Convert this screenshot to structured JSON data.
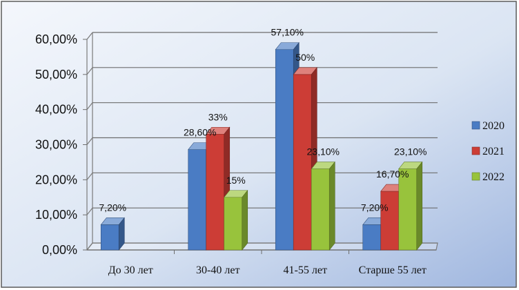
{
  "chart_data": {
    "type": "bar",
    "title": "",
    "xlabel": "",
    "ylabel": "",
    "categories": [
      "До 30 лет",
      "30-40 лет",
      "41-55 лет",
      "Старше 55 лет"
    ],
    "series": [
      {
        "name": "2020",
        "color": "#4a7cc4",
        "values": [
          7.2,
          28.6,
          57.1,
          7.2
        ],
        "labels": [
          "7,20%",
          "28,60%",
          "57,10%",
          "7,20%"
        ]
      },
      {
        "name": "2021",
        "color": "#cc3d36",
        "values": [
          null,
          33,
          50,
          16.7
        ],
        "labels": [
          "",
          "33%",
          "50%",
          "16,70%"
        ]
      },
      {
        "name": "2022",
        "color": "#98c33c",
        "values": [
          null,
          15,
          23.1,
          23.1
        ],
        "labels": [
          "",
          "15%",
          "23,10%",
          "23,10%"
        ]
      }
    ],
    "ylim": [
      0,
      60
    ],
    "yticks": [
      0,
      10,
      20,
      30,
      40,
      50,
      60
    ],
    "ytick_labels": [
      "0,00%",
      "10,00%",
      "20,00%",
      "30,00%",
      "40,00%",
      "50,00%",
      "60,00%"
    ],
    "grid": true,
    "three_d": true,
    "legend": {
      "position": "right",
      "entries": [
        "2020",
        "2021",
        "2022"
      ]
    }
  }
}
